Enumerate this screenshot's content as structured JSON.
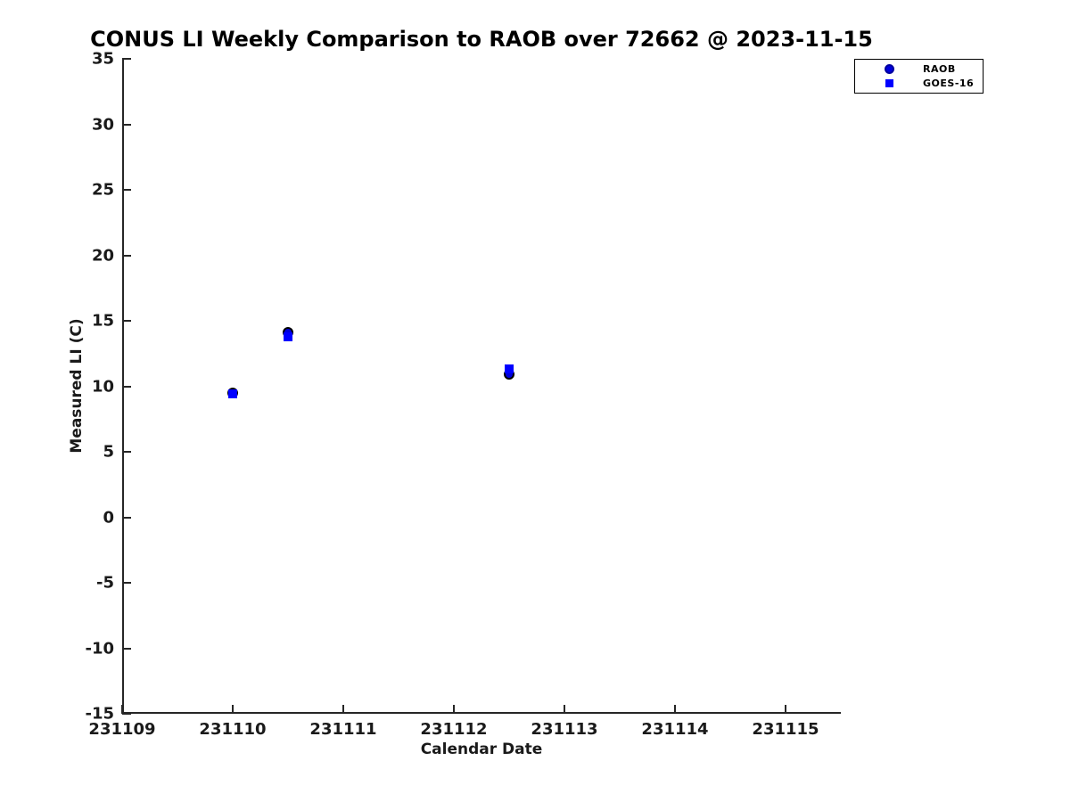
{
  "chart_data": {
    "type": "scatter",
    "title": "CONUS LI Weekly Comparison to RAOB over 72662 @ 2023-11-15",
    "xlabel": "Calendar Date",
    "ylabel": "Measured LI (C)",
    "xlim": [
      231109,
      231115.5
    ],
    "ylim": [
      -15,
      35
    ],
    "xticks": [
      231109,
      231110,
      231111,
      231112,
      231113,
      231114,
      231115
    ],
    "yticks": [
      35,
      30,
      25,
      20,
      15,
      10,
      5,
      0,
      -5,
      -10,
      -15
    ],
    "grid": false,
    "legend_position": "upper right",
    "series": [
      {
        "name": "RAOB",
        "marker": "circle",
        "color": "#0000dd",
        "edge_color": "#000000",
        "points": [
          {
            "x": 231110.0,
            "y": 9.5
          },
          {
            "x": 231110.5,
            "y": 14.1
          },
          {
            "x": 231112.5,
            "y": 10.9
          }
        ]
      },
      {
        "name": "GOES-16",
        "marker": "square",
        "color": "#0000ff",
        "edge_color": "none",
        "points": [
          {
            "x": 231110.0,
            "y": 9.45
          },
          {
            "x": 231110.5,
            "y": 13.75
          },
          {
            "x": 231112.5,
            "y": 11.35
          }
        ]
      }
    ]
  }
}
